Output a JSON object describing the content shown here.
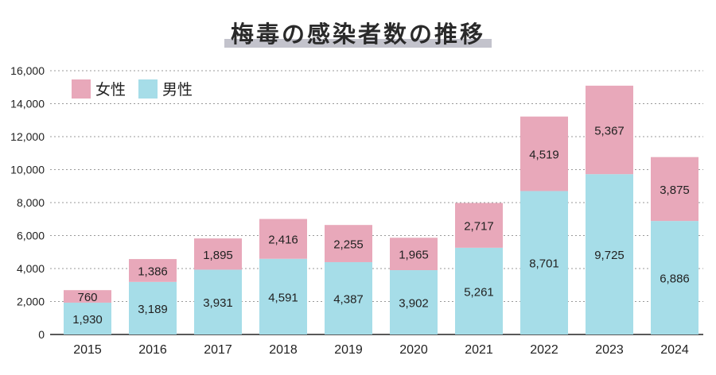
{
  "chart_data": {
    "type": "bar",
    "stacked": true,
    "title": "梅毒の感染者数の推移",
    "categories": [
      "2015",
      "2016",
      "2017",
      "2018",
      "2019",
      "2020",
      "2021",
      "2022",
      "2023",
      "2024"
    ],
    "series": [
      {
        "name": "男性",
        "color": "#a6dde8",
        "values": [
          1930,
          3189,
          3931,
          4591,
          4387,
          3902,
          5261,
          8701,
          9725,
          6886
        ]
      },
      {
        "name": "女性",
        "color": "#e8a8ba",
        "values": [
          760,
          1386,
          1895,
          2416,
          2255,
          1965,
          2717,
          4519,
          5367,
          3875
        ]
      }
    ],
    "value_labels": {
      "男性": [
        "1,930",
        "3,189",
        "3,931",
        "4,591",
        "4,387",
        "3,902",
        "5,261",
        "8,701",
        "9,725",
        "6,886"
      ],
      "女性": [
        "760",
        "1,386",
        "1,895",
        "2,416",
        "2,255",
        "1,965",
        "2,717",
        "4,519",
        "5,367",
        "3,875"
      ]
    },
    "ylim": [
      0,
      16000
    ],
    "yticks": [
      0,
      2000,
      4000,
      6000,
      8000,
      10000,
      12000,
      14000,
      16000
    ],
    "ytick_labels": [
      "0",
      "2,000",
      "4,000",
      "6,000",
      "8,000",
      "10,000",
      "12,000",
      "14,000",
      "16,000"
    ],
    "grid": true,
    "legend_position": "top-left",
    "legend_order": [
      "女性",
      "男性"
    ]
  }
}
